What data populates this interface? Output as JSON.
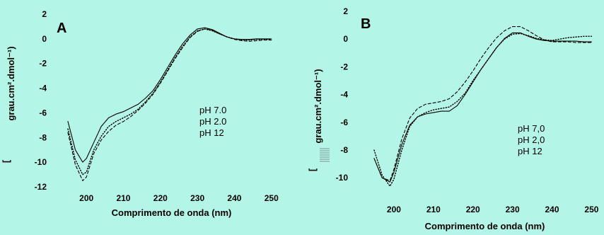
{
  "chart_data": [
    {
      "type": "line",
      "panel_label": "A",
      "xlabel": "Comprimento de onda (nm)",
      "ylabel_prefix": "[",
      "ylabel": "grau.cm².dmol⁻¹)",
      "xlim": [
        195,
        251
      ],
      "ylim": [
        -12,
        2
      ],
      "xticks": [
        "200",
        "210",
        "220",
        "230",
        "240",
        "250"
      ],
      "yticks": [
        "2",
        "0",
        "-2",
        "-4",
        "-6",
        "-8",
        "-10",
        "-12"
      ],
      "legend": [
        "pH 7.0",
        "pH 2.0",
        "pH 12"
      ],
      "series": [
        {
          "name": "pH 7.0",
          "style": "solid",
          "x": [
            195,
            197,
            199,
            200,
            202,
            204,
            206,
            208,
            210,
            212,
            214,
            216,
            218,
            220,
            222,
            224,
            226,
            228,
            230,
            232,
            234,
            236,
            238,
            240,
            242,
            244,
            246,
            248,
            250
          ],
          "y": [
            -6.7,
            -9.0,
            -10.0,
            -9.7,
            -8.4,
            -7.1,
            -6.4,
            -6.1,
            -5.9,
            -5.6,
            -5.3,
            -4.8,
            -4.2,
            -3.3,
            -2.3,
            -1.3,
            -0.4,
            0.3,
            0.8,
            0.9,
            0.75,
            0.45,
            0.15,
            0.0,
            -0.05,
            -0.05,
            0.0,
            0.0,
            0.0
          ]
        },
        {
          "name": "pH 2.0",
          "style": "dotted",
          "x": [
            195,
            197,
            199,
            200,
            202,
            204,
            206,
            208,
            210,
            212,
            214,
            216,
            218,
            220,
            222,
            224,
            226,
            228,
            230,
            232,
            234,
            236,
            238,
            240,
            242,
            244,
            246,
            248,
            250
          ],
          "y": [
            -7.3,
            -9.8,
            -11.0,
            -10.8,
            -9.0,
            -7.9,
            -7.1,
            -6.7,
            -6.4,
            -6.1,
            -5.7,
            -5.1,
            -4.4,
            -3.5,
            -2.5,
            -1.5,
            -0.6,
            0.15,
            0.65,
            0.8,
            0.65,
            0.4,
            0.15,
            0.0,
            -0.1,
            -0.1,
            -0.05,
            -0.05,
            -0.05
          ]
        },
        {
          "name": "pH 12",
          "style": "dashed",
          "x": [
            195,
            197,
            199,
            200,
            202,
            204,
            206,
            208,
            210,
            212,
            214,
            216,
            218,
            220,
            222,
            224,
            226,
            228,
            230,
            232,
            234,
            236,
            238,
            240,
            242,
            244,
            246,
            248,
            250
          ],
          "y": [
            -7.6,
            -10.2,
            -11.5,
            -11.2,
            -9.3,
            -8.2,
            -7.5,
            -7.0,
            -6.7,
            -6.3,
            -5.8,
            -5.2,
            -4.5,
            -3.6,
            -2.6,
            -1.6,
            -0.7,
            0.1,
            0.6,
            0.8,
            0.7,
            0.4,
            0.15,
            -0.05,
            -0.15,
            -0.2,
            -0.15,
            -0.1,
            -0.1
          ]
        }
      ]
    },
    {
      "type": "line",
      "panel_label": "B",
      "xlabel": "Comprimento de onda (nm)",
      "ylabel_prefix": "[",
      "ylabel": "grau.cm².dmol⁻¹)",
      "xlim": [
        195,
        251
      ],
      "ylim": [
        -10.5,
        2
      ],
      "xticks": [
        "200",
        "210",
        "220",
        "230",
        "240",
        "250"
      ],
      "yticks": [
        "2",
        "0",
        "-2",
        "-4",
        "-6",
        "-8",
        "-10"
      ],
      "legend": [
        "pH 7,0",
        "pH 2,0",
        "pH 12"
      ],
      "series": [
        {
          "name": "pH 7,0",
          "style": "solid",
          "x": [
            195,
            197,
            199,
            200,
            202,
            204,
            206,
            208,
            210,
            212,
            214,
            216,
            218,
            220,
            222,
            224,
            226,
            228,
            230,
            232,
            234,
            236,
            238,
            240,
            242,
            244,
            246,
            248,
            250
          ],
          "y": [
            -8.6,
            -10.0,
            -10.3,
            -9.6,
            -7.6,
            -6.2,
            -5.6,
            -5.4,
            -5.3,
            -5.2,
            -5.2,
            -4.8,
            -4.0,
            -3.1,
            -2.2,
            -1.4,
            -0.6,
            0.05,
            0.45,
            0.45,
            0.2,
            0.0,
            -0.1,
            -0.15,
            -0.15,
            -0.15,
            -0.15,
            -0.2,
            -0.2
          ]
        },
        {
          "name": "pH 2,0",
          "style": "dotted",
          "x": [
            195,
            197,
            199,
            200,
            202,
            204,
            206,
            208,
            210,
            212,
            214,
            216,
            218,
            220,
            222,
            224,
            226,
            228,
            230,
            232,
            234,
            236,
            238,
            240,
            242,
            244,
            246,
            248,
            250
          ],
          "y": [
            -8.0,
            -9.8,
            -10.6,
            -10.1,
            -8.0,
            -6.3,
            -5.6,
            -5.3,
            -5.1,
            -5.0,
            -4.9,
            -4.5,
            -3.9,
            -3.0,
            -2.2,
            -1.4,
            -0.6,
            0.0,
            0.35,
            0.4,
            0.25,
            0.05,
            -0.05,
            -0.1,
            0.0,
            0.1,
            0.15,
            0.2,
            0.2
          ]
        },
        {
          "name": "pH 12",
          "style": "dashed",
          "x": [
            195,
            197,
            199,
            200,
            202,
            204,
            206,
            208,
            210,
            212,
            214,
            216,
            218,
            220,
            222,
            224,
            226,
            228,
            230,
            232,
            234,
            236,
            238,
            240,
            242,
            244,
            246,
            248,
            250
          ],
          "y": [
            -8.6,
            -10.0,
            -10.2,
            -9.4,
            -7.2,
            -5.7,
            -5.0,
            -4.7,
            -4.6,
            -4.5,
            -4.3,
            -3.8,
            -3.1,
            -2.3,
            -1.4,
            -0.6,
            0.1,
            0.6,
            0.9,
            0.9,
            0.6,
            0.25,
            -0.05,
            -0.2,
            -0.2,
            -0.2,
            -0.25,
            -0.25,
            -0.25
          ]
        }
      ]
    }
  ]
}
